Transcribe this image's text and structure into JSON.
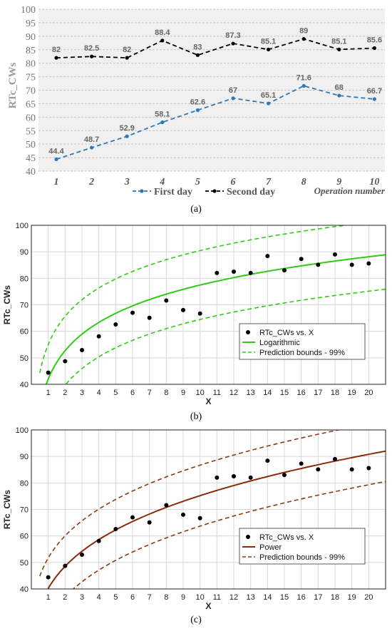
{
  "chart_data": [
    {
      "type": "line",
      "panel_label": "(a)",
      "ylabel": "RTc_CWs",
      "xlabel": "Operation number",
      "ylim": [
        40,
        100
      ],
      "yticks": [
        40,
        45,
        50,
        55,
        60,
        65,
        70,
        75,
        80,
        85,
        90,
        95,
        100
      ],
      "x": [
        1,
        2,
        3,
        4,
        5,
        6,
        7,
        8,
        9,
        10
      ],
      "legend_position": "bottom",
      "grid": true,
      "series": [
        {
          "name": "First day",
          "color": "#2e78b5",
          "values": [
            44.4,
            48.7,
            52.9,
            58.1,
            62.6,
            67,
            65.1,
            71.6,
            68,
            66.7
          ]
        },
        {
          "name": "Second day",
          "color": "#000000",
          "values": [
            82,
            82.5,
            82,
            88.4,
            83,
            87.3,
            85.1,
            89,
            85.1,
            85.6
          ]
        }
      ]
    },
    {
      "type": "scatter",
      "panel_label": "(b)",
      "ylabel": "RTc_CWs",
      "xlabel": "X",
      "ylim": [
        40,
        100
      ],
      "xlim": [
        0,
        21
      ],
      "yticks": [
        40,
        50,
        60,
        70,
        80,
        90,
        100
      ],
      "xticks": [
        1,
        2,
        3,
        4,
        5,
        6,
        7,
        8,
        9,
        10,
        11,
        12,
        13,
        14,
        15,
        16,
        17,
        18,
        19,
        20
      ],
      "legend_position": "center-right",
      "points_x": [
        1,
        2,
        3,
        4,
        5,
        6,
        7,
        8,
        9,
        10,
        11,
        12,
        13,
        14,
        15,
        16,
        17,
        18,
        19,
        20
      ],
      "points_y": [
        44.4,
        48.7,
        52.9,
        58.1,
        62.6,
        67,
        65.1,
        71.6,
        68,
        66.7,
        82,
        82.5,
        82,
        88.4,
        83,
        87.3,
        85.1,
        89,
        85.1,
        85.6
      ],
      "legend": [
        "RTc_CWs vs. X",
        "Logarithmic",
        "Prediction bounds - 99%"
      ],
      "fit": {
        "name": "Logarithmic",
        "color": "#2ecc12",
        "a": 42.0,
        "b": 15.4
      },
      "bounds_color": "#2ecc12",
      "bounds_offset": 13
    },
    {
      "type": "scatter",
      "panel_label": "(c)",
      "ylabel": "RTc_CWs",
      "xlabel": "X",
      "ylim": [
        40,
        100
      ],
      "xlim": [
        0,
        21
      ],
      "yticks": [
        40,
        50,
        60,
        70,
        80,
        90,
        100
      ],
      "xticks": [
        1,
        2,
        3,
        4,
        5,
        6,
        7,
        8,
        9,
        10,
        11,
        12,
        13,
        14,
        15,
        16,
        17,
        18,
        19,
        20
      ],
      "legend_position": "center-right",
      "points_x": [
        1,
        2,
        3,
        4,
        5,
        6,
        7,
        8,
        9,
        10,
        11,
        12,
        13,
        14,
        15,
        16,
        17,
        18,
        19,
        20
      ],
      "points_y": [
        44.4,
        48.7,
        52.9,
        58.1,
        62.6,
        67,
        65.1,
        71.6,
        68,
        66.7,
        82,
        82.5,
        82,
        88.4,
        83,
        87.3,
        85.1,
        89,
        85.1,
        85.6
      ],
      "legend": [
        "RTc_CWs vs. X",
        "Power",
        "Prediction bounds - 99%"
      ],
      "fit": {
        "name": "Power",
        "color": "#8b2a0c",
        "a": 40.2,
        "b": 0.272
      },
      "bounds_color": "#8b3a10",
      "bounds_offset": 11.5
    }
  ]
}
